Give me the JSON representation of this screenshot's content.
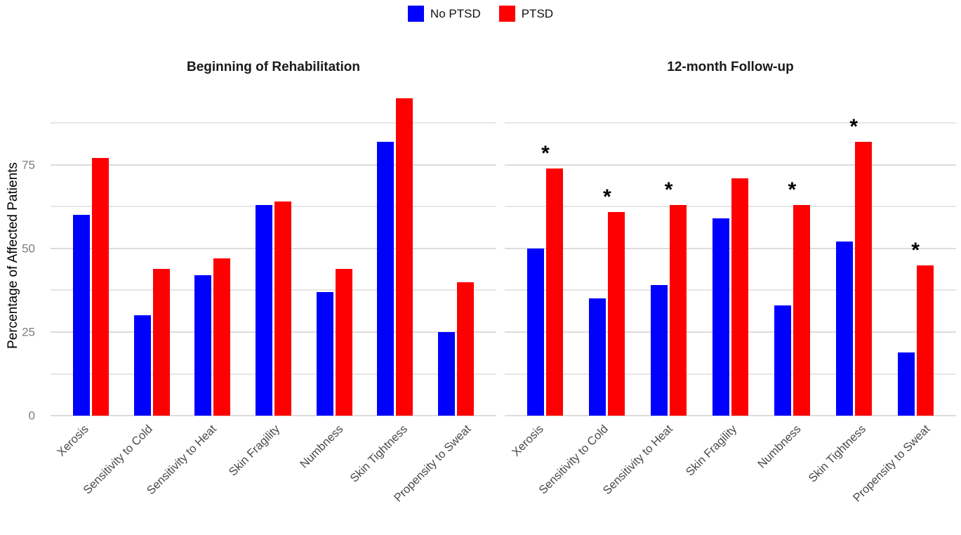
{
  "legend": {
    "items": [
      {
        "label": "No PTSD",
        "color": "#0000FF"
      },
      {
        "label": "PTSD",
        "color": "#FF0000"
      }
    ]
  },
  "chart_data": {
    "type": "bar",
    "grouped": true,
    "faceted": true,
    "ylabel": "Percentage of Affected Patients",
    "ylim": [
      0,
      96
    ],
    "yticks": [
      0,
      25,
      50,
      75
    ],
    "gridlines": [
      0,
      12.5,
      25,
      37.5,
      50,
      62.5,
      75,
      87.5
    ],
    "grid": "horizontal light-gray lines, no axis lines",
    "legend_position": "top center",
    "sig_marker": "*",
    "categories": [
      "Xerosis",
      "Sensitivity to Cold",
      "Sensitivity to Heat",
      "Skin Fragility",
      "Numbness",
      "Skin Tightness",
      "Propensity to Sweat"
    ],
    "facets": [
      {
        "title": "Beginning of Rehabilitation",
        "series": [
          {
            "name": "No PTSD",
            "color": "#0000FF",
            "values": [
              60,
              30,
              42,
              63,
              37,
              82,
              25
            ]
          },
          {
            "name": "PTSD",
            "color": "#FF0000",
            "values": [
              77,
              44,
              47,
              64,
              44,
              95,
              40
            ]
          }
        ],
        "significance": [
          false,
          false,
          false,
          false,
          false,
          false,
          false
        ]
      },
      {
        "title": "12-month Follow-up",
        "series": [
          {
            "name": "No PTSD",
            "color": "#0000FF",
            "values": [
              50,
              35,
              39,
              59,
              33,
              52,
              19
            ]
          },
          {
            "name": "PTSD",
            "color": "#FF0000",
            "values": [
              74,
              61,
              63,
              71,
              63,
              82,
              45
            ]
          }
        ],
        "significance": [
          true,
          true,
          true,
          false,
          true,
          true,
          true
        ]
      }
    ]
  },
  "colors": {
    "gridline": "#e6e6e6",
    "y_tick_text": "#7d7d7d",
    "category_text": "#4a4a4a",
    "title_text": "#1a1a1a"
  }
}
